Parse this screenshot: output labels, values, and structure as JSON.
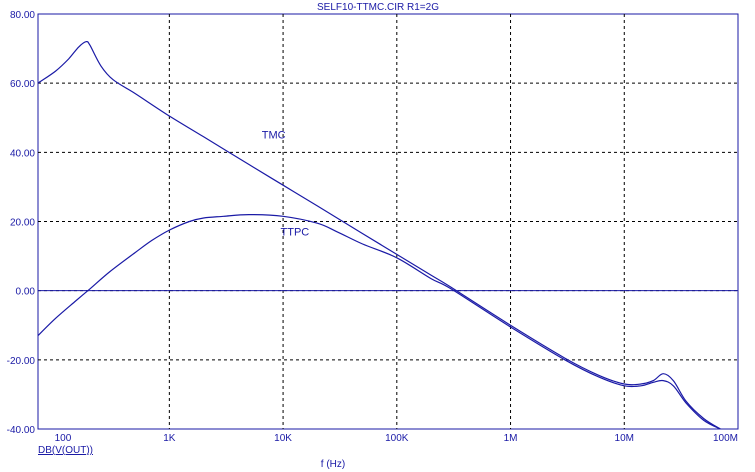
{
  "chart_data": {
    "type": "line",
    "title": "SELF10-TTMC.CIR R1=2G",
    "xlabel": "f (Hz)",
    "ylabel": "DB(V(OUT))",
    "x_scale": "log",
    "xlim": [
      70,
      100000000
    ],
    "ylim": [
      -40,
      80
    ],
    "grid": true,
    "xticks": [
      100,
      1000,
      10000,
      100000,
      1000000,
      10000000,
      100000000
    ],
    "xtick_labels": [
      "100",
      "1K",
      "10K",
      "100K",
      "1M",
      "10M",
      "100M"
    ],
    "yticks": [
      80,
      60,
      40,
      20,
      0,
      -20,
      -40
    ],
    "ytick_labels": [
      "80.00",
      "60.00",
      "40.00",
      "20.00",
      "0.00",
      "-20.00",
      "-40.00"
    ],
    "line_color": "#1a1aa6",
    "series": [
      {
        "name": "TMC",
        "x": [
          70,
          100,
          130,
          160,
          185,
          200,
          250,
          320,
          500,
          1000,
          2000,
          5000,
          10000,
          20000,
          50000,
          100000,
          200000,
          300000,
          1000000,
          3000000,
          6000000,
          10000000,
          14000000,
          18000000,
          22000000,
          27000000,
          35000000,
          50000000,
          70000000
        ],
        "y": [
          60,
          63.5,
          67,
          70.5,
          72,
          71,
          65,
          61,
          57,
          50.5,
          44.5,
          36.5,
          30.5,
          24.5,
          16.5,
          10.5,
          4.5,
          1,
          -10,
          -19.5,
          -24.5,
          -27,
          -27,
          -26,
          -24,
          -26,
          -32,
          -37,
          -40
        ]
      },
      {
        "name": "TTPC",
        "x": [
          70,
          100,
          150,
          200,
          300,
          500,
          700,
          1000,
          1500,
          2000,
          3000,
          5000,
          10000,
          20000,
          30000,
          50000,
          100000,
          200000,
          300000,
          1000000,
          3000000,
          6000000,
          10000000,
          14000000,
          18000000,
          22000000,
          27000000,
          35000000,
          50000000,
          70000000
        ],
        "y": [
          -13,
          -8,
          -3,
          0.5,
          5.5,
          11,
          14.5,
          17.5,
          20,
          21,
          21.5,
          22,
          21.5,
          19.5,
          17,
          13.5,
          9.5,
          3.5,
          0.5,
          -10.5,
          -20,
          -25,
          -27.5,
          -27.5,
          -26.5,
          -26,
          -27.5,
          -32.5,
          -37.5,
          -40
        ]
      }
    ],
    "reference_lines": [
      {
        "y": 0
      }
    ],
    "annotations": [
      {
        "text": "TMC",
        "x": 6500,
        "y": 44
      },
      {
        "text": "TTPC",
        "x": 9500,
        "y": 16
      }
    ]
  }
}
